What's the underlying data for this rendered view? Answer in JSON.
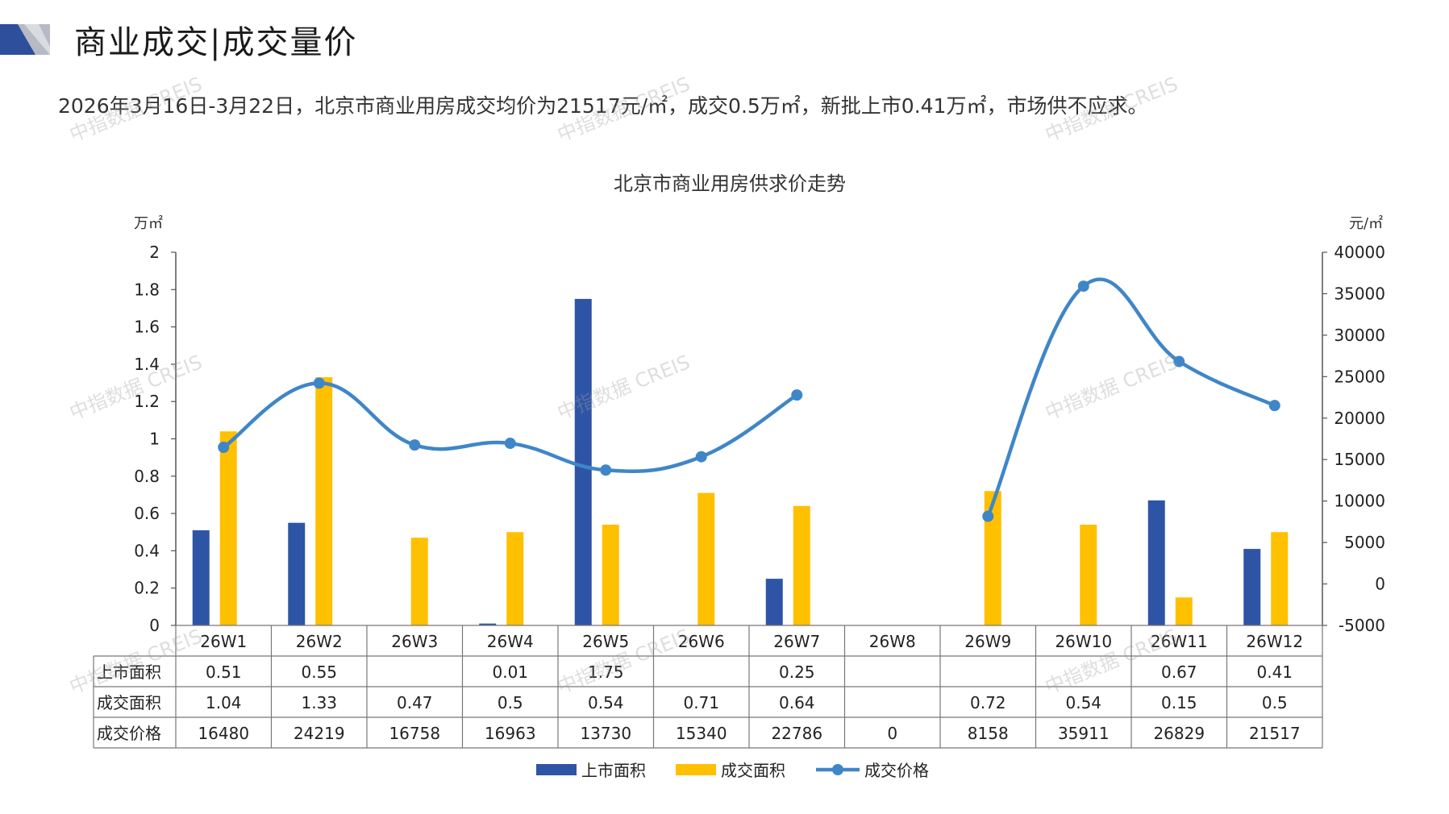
{
  "header": {
    "title": "商业成交|成交量价",
    "summary": "2026年3月16日-3月22日，北京市商业用房成交均价为21517元/㎡，成交0.5万㎡，新批上市0.41万㎡，市场供不应求。"
  },
  "watermark": "中指数据 CREIS",
  "colors": {
    "listing": "#2E55A5",
    "deal_area": "#FFC000",
    "price": "#3F86C8",
    "deco_dark": "#2E4F9C",
    "deco_grey": "#B7BAC4"
  },
  "chart_data": {
    "type": "bar",
    "title": "北京市商业用房供求价走势",
    "y_left_unit": "万㎡",
    "y_right_unit": "元/㎡",
    "ylim_left": [
      0,
      2
    ],
    "yticks_left": [
      "2",
      "1.8",
      "1.6",
      "1.4",
      "1.2",
      "1",
      "0.8",
      "0.6",
      "0.4",
      "0.2",
      "0"
    ],
    "ylim_right": [
      -5000,
      40000
    ],
    "yticks_right": [
      "40000",
      "35000",
      "30000",
      "25000",
      "20000",
      "15000",
      "10000",
      "5000",
      "0",
      "-5000"
    ],
    "categories": [
      "26W1",
      "26W2",
      "26W3",
      "26W4",
      "26W5",
      "26W6",
      "26W7",
      "26W8",
      "26W9",
      "26W10",
      "26W11",
      "26W12"
    ],
    "series": [
      {
        "name": "上市面积",
        "kind": "bar",
        "axis": "left",
        "values": [
          0.51,
          0.55,
          null,
          0.01,
          1.75,
          null,
          0.25,
          null,
          null,
          null,
          0.67,
          0.41
        ],
        "labels": [
          "0.51",
          "0.55",
          "",
          "0.01",
          "1.75",
          "",
          "0.25",
          "",
          "",
          "",
          "0.67",
          "0.41"
        ]
      },
      {
        "name": "成交面积",
        "kind": "bar",
        "axis": "left",
        "values": [
          1.04,
          1.33,
          0.47,
          0.5,
          0.54,
          0.71,
          0.64,
          null,
          0.72,
          0.54,
          0.15,
          0.5
        ],
        "labels": [
          "1.04",
          "1.33",
          "0.47",
          "0.5",
          "0.54",
          "0.71",
          "0.64",
          "",
          "0.72",
          "0.54",
          "0.15",
          "0.5"
        ]
      },
      {
        "name": "成交价格",
        "kind": "line",
        "axis": "right",
        "values": [
          16480,
          24219,
          16758,
          16963,
          13730,
          15340,
          22786,
          0,
          8158,
          35911,
          26829,
          21517
        ],
        "labels": [
          "16480",
          "24219",
          "16758",
          "16963",
          "13730",
          "15340",
          "22786",
          "0",
          "8158",
          "35911",
          "26829",
          "21517"
        ]
      }
    ],
    "legend_position": "bottom",
    "data_table": true
  }
}
